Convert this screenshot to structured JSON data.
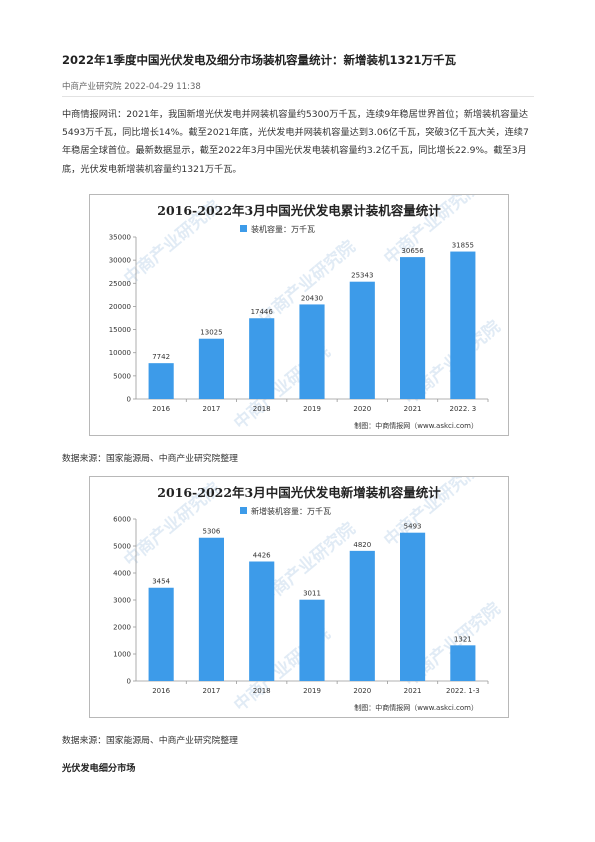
{
  "article": {
    "title": "2022年1季度中国光伏发电及细分市场装机容量统计：新增装机1321万千瓦",
    "meta": "中商产业研究院 2022-04-29 11:38",
    "paragraph": "中商情报网讯：2021年，我国新增光伏发电并网装机容量约5300万千瓦，连续9年稳居世界首位；新增装机容量达5493万千瓦，同比增长14%。截至2021年底，光伏发电并网装机容量达到3.06亿千瓦，突破3亿千瓦大关，连续7年稳居全球首位。最新数据显示，截至2022年3月中国光伏发电装机容量约3.2亿千瓦，同比增长22.9%。截至3月底，光伏发电新增装机容量约1321万千瓦。",
    "source1": "数据来源：国家能源局、中商产业研究院整理",
    "source2": "数据来源：国家能源局、中商产业研究院整理",
    "section_heading": "光伏发电细分市场"
  },
  "colors": {
    "bar": "#3d9be9",
    "watermark": "#c9dcee"
  },
  "watermark_text": "中商产业研究院",
  "chart_data": [
    {
      "type": "bar",
      "title": "2016-2022年3月中国光伏发电累计装机容量统计",
      "legend": "装机容量：万千瓦",
      "categories": [
        "2016",
        "2017",
        "2018",
        "2019",
        "2020",
        "2021",
        "2022. 3"
      ],
      "values": [
        7742,
        13025,
        17446,
        20430,
        25343,
        30656,
        31855
      ],
      "value_labels": [
        "7742",
        "13025",
        "17446",
        "20430",
        "25343",
        "30656",
        "31855"
      ],
      "ylim": [
        0,
        35000
      ],
      "yticks": [
        0,
        5000,
        10000,
        15000,
        20000,
        25000,
        30000,
        35000
      ],
      "credit": "制图：中商情报网（www.askci.com）"
    },
    {
      "type": "bar",
      "title": "2016-2022年3月中国光伏发电新增装机容量统计",
      "legend": "新增装机容量：万千瓦",
      "categories": [
        "2016",
        "2017",
        "2018",
        "2019",
        "2020",
        "2021",
        "2022. 1-3"
      ],
      "values": [
        3454,
        5306,
        4426,
        3011,
        4820,
        5493,
        1321
      ],
      "value_labels": [
        "3454",
        "5306",
        "4426",
        "3011",
        "4820",
        "5493",
        "1321"
      ],
      "ylim": [
        0,
        6000
      ],
      "yticks": [
        0,
        1000,
        2000,
        3000,
        4000,
        5000,
        6000
      ],
      "credit": "制图：中商情报网（www.askci.com）"
    }
  ]
}
